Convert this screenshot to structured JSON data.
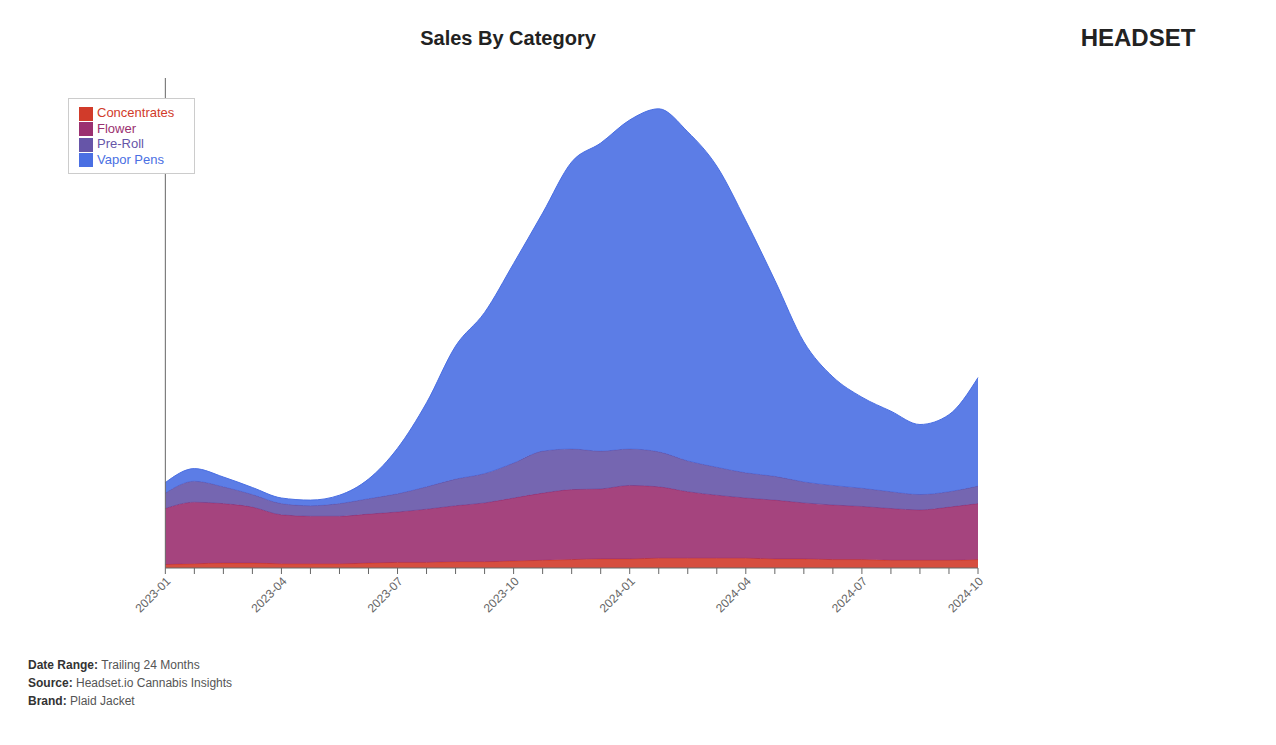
{
  "chart_data": {
    "type": "area",
    "title": "Sales By Category",
    "stacked": true,
    "categories": [
      "2023-01",
      null,
      null,
      null,
      "2023-04",
      null,
      null,
      null,
      "2023-07",
      null,
      null,
      null,
      "2023-10",
      null,
      null,
      null,
      "2024-01",
      null,
      null,
      null,
      "2024-04",
      null,
      null,
      null,
      "2024-07",
      null,
      null,
      null,
      "2024-10"
    ],
    "series": [
      {
        "name": "Concentrates",
        "color": "#d13b2a",
        "values": [
          5,
          6,
          7,
          7,
          6,
          6,
          6,
          7,
          8,
          8,
          9,
          9,
          10,
          11,
          12,
          13,
          13,
          14,
          14,
          14,
          14,
          13,
          13,
          12,
          12,
          11,
          11,
          11,
          12
        ]
      },
      {
        "name": "Flower",
        "color": "#9b3070",
        "values": [
          80,
          88,
          85,
          80,
          70,
          68,
          68,
          70,
          72,
          76,
          80,
          84,
          90,
          96,
          100,
          100,
          105,
          102,
          95,
          90,
          86,
          84,
          80,
          78,
          76,
          74,
          72,
          76,
          80
        ]
      },
      {
        "name": "Pre-Roll",
        "color": "#6655a8",
        "values": [
          22,
          30,
          24,
          18,
          16,
          15,
          18,
          22,
          26,
          32,
          38,
          42,
          50,
          60,
          58,
          54,
          52,
          50,
          44,
          40,
          36,
          34,
          30,
          28,
          26,
          24,
          22,
          22,
          25
        ]
      },
      {
        "name": "Vapor Pens",
        "color": "#4a6fe3",
        "values": [
          15,
          18,
          14,
          10,
          8,
          8,
          12,
          28,
          65,
          120,
          190,
          230,
          285,
          340,
          410,
          440,
          470,
          490,
          470,
          430,
          360,
          280,
          200,
          155,
          130,
          115,
          100,
          110,
          155
        ]
      }
    ],
    "ylim": [
      0,
      700
    ],
    "tick_labels": "x",
    "grid": false,
    "legend": "upper left",
    "annotations": [
      "Date Range: Trailing 24 Months",
      "Source: Headset.io Cannabis Insights",
      "Brand: Plaid Jacket",
      "HEADSET"
    ]
  }
}
